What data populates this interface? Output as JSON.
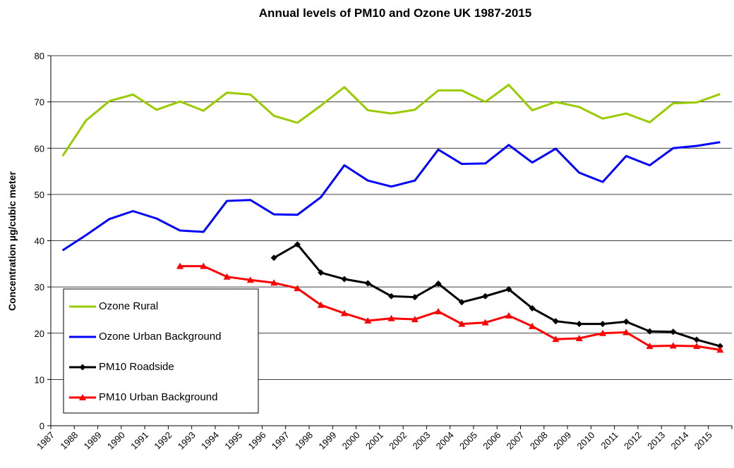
{
  "chart_data": {
    "type": "line",
    "title": "Annual levels of PM10 and Ozone UK 1987-2015",
    "y_label": "Concentration µg/cubic meter",
    "categories": [
      "1987",
      "1988",
      "1989",
      "1990",
      "1991",
      "1992",
      "1993",
      "1994",
      "1995",
      "1996",
      "1997",
      "1998",
      "1999",
      "2000",
      "2001",
      "2002",
      "2003",
      "2004",
      "2005",
      "2006",
      "2007",
      "2008",
      "2009",
      "2010",
      "2011",
      "2012",
      "2013",
      "2014",
      "2015"
    ],
    "ylim": [
      0,
      80
    ],
    "yticks": [
      0,
      10,
      20,
      30,
      40,
      50,
      60,
      70,
      80
    ],
    "grid": true,
    "series": [
      {
        "name": "Ozone Rural",
        "color": "#99cc00",
        "marker": "none",
        "values": [
          58.3,
          66,
          70.2,
          71.6,
          68.3,
          70.1,
          68.1,
          72,
          71.6,
          67,
          65.5,
          69.2,
          73.2,
          68.2,
          67.5,
          68.3,
          72.5,
          72.5,
          70,
          73.7,
          68.2,
          70,
          68.9,
          66.4,
          67.5,
          65.6,
          69.7,
          69.9,
          71.7
        ]
      },
      {
        "name": "Ozone Urban Background",
        "color": "#0000ff",
        "marker": "none",
        "values": [
          37.9,
          41.2,
          44.7,
          46.4,
          44.8,
          42.2,
          41.9,
          48.6,
          48.8,
          45.7,
          45.6,
          49.4,
          56.3,
          53,
          51.7,
          53,
          59.7,
          56.6,
          56.7,
          60.7,
          56.9,
          59.9,
          54.7,
          52.7,
          58.3,
          56.3,
          60,
          60.5,
          61.3
        ]
      },
      {
        "name": "PM10 Roadside",
        "color": "#000000",
        "marker": "diamond",
        "values": [
          null,
          null,
          null,
          null,
          null,
          null,
          null,
          null,
          null,
          36.3,
          39.2,
          33.1,
          31.7,
          30.8,
          28,
          27.8,
          30.7,
          26.7,
          28,
          29.5,
          25.4,
          22.6,
          22,
          22,
          22.5,
          20.4,
          20.3,
          18.6,
          17.2
        ]
      },
      {
        "name": "PM10 Urban Background",
        "color": "#ff0000",
        "marker": "triangle",
        "values": [
          null,
          null,
          null,
          null,
          null,
          34.5,
          34.5,
          32.2,
          31.5,
          30.9,
          29.7,
          26.1,
          24.3,
          22.7,
          23.2,
          23,
          24.7,
          22,
          22.3,
          23.8,
          21.5,
          18.7,
          18.9,
          20,
          20.2,
          17.2,
          17.3,
          17.2,
          16.4
        ]
      }
    ]
  }
}
